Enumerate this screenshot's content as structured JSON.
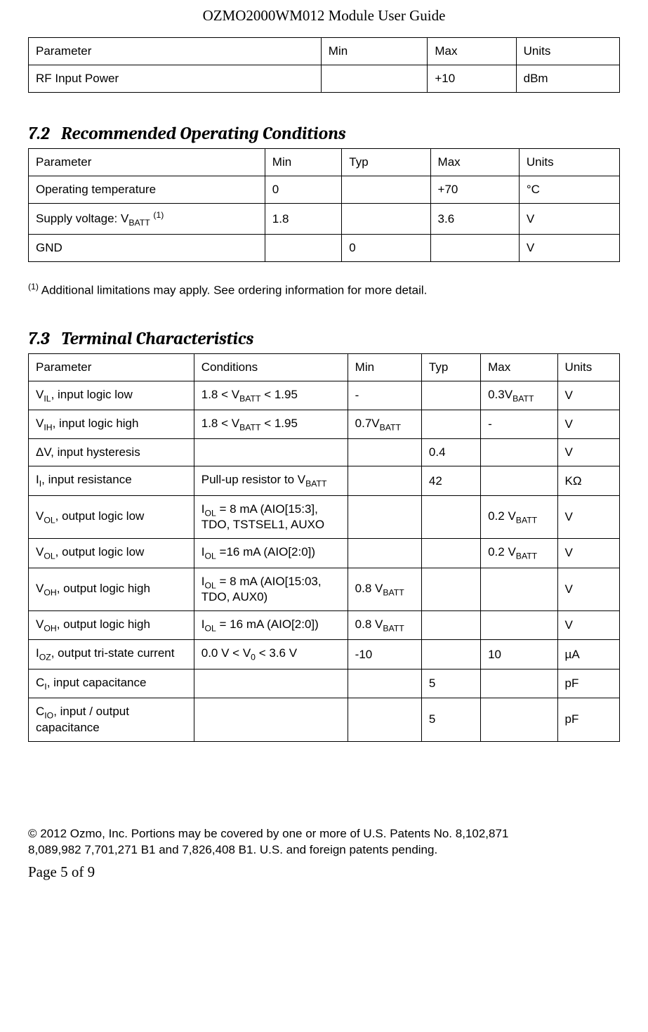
{
  "doc_title": "OZMO2000WM012 Module User Guide",
  "table1": {
    "headers": {
      "param": "Parameter",
      "min": "Min",
      "max": "Max",
      "units": "Units"
    },
    "rows": [
      {
        "param": "RF Input Power",
        "min": "",
        "max": "+10",
        "units": "dBm"
      }
    ],
    "col_widths": [
      "49.5%",
      "18%",
      "15%",
      "17.5%"
    ]
  },
  "section72": {
    "num": "7.2",
    "title": "Recommended Operating Conditions"
  },
  "table2": {
    "headers": {
      "param": "Parameter",
      "min": "Min",
      "typ": "Typ",
      "max": "Max",
      "units": "Units"
    },
    "rows": [
      {
        "param_html": "Operating temperature",
        "min": "0",
        "typ": "",
        "max": "+70",
        "units": "°C"
      },
      {
        "param_html": "Supply voltage: V<sub>BATT</sub> <sup>(1)</sup>",
        "min": "1.8",
        "typ": "",
        "max": "3.6",
        "units": "V"
      },
      {
        "param_html": "GND",
        "min": "",
        "typ": "0",
        "max": "",
        "units": "V"
      }
    ],
    "col_widths": [
      "40%",
      "13%",
      "15%",
      "15%",
      "17%"
    ]
  },
  "footnote1_html": "<sup>(1)</sup> Additional limitations may apply. See ordering information for more detail.",
  "section73": {
    "num": "7.3",
    "title": "Terminal Characteristics"
  },
  "table3": {
    "headers": {
      "param": "Parameter",
      "cond": "Conditions",
      "min": "Min",
      "typ": "Typ",
      "max": "Max",
      "units": "Units"
    },
    "rows": [
      {
        "param_html": "V<sub>IL</sub>, input logic low",
        "cond_html": "1.8 &lt; V<sub>BATT</sub> &lt; 1.95",
        "min_html": "-",
        "typ_html": "",
        "max_html": "0.3V<sub>BATT</sub>",
        "units": "V"
      },
      {
        "param_html": "V<sub>IH</sub>, input logic high",
        "cond_html": "1.8 &lt; V<sub>BATT</sub> &lt; 1.95",
        "min_html": "0.7V<sub>BATT</sub>",
        "typ_html": "",
        "max_html": "-",
        "units": "V"
      },
      {
        "param_html": "ΔV, input hysteresis",
        "cond_html": "",
        "min_html": "",
        "typ_html": "0.4",
        "max_html": "",
        "units": "V"
      },
      {
        "param_html": "I<sub>I</sub>, input resistance",
        "cond_html": "Pull-up resistor to V<sub>BATT</sub>",
        "min_html": "",
        "typ_html": "42",
        "max_html": "",
        "units": "KΩ"
      },
      {
        "param_html": "V<sub>OL</sub>, output logic low",
        "cond_html": "I<sub>OL</sub> = 8 mA (AIO[15:3], TDO, TSTSEL1, AUXO",
        "min_html": "",
        "typ_html": "",
        "max_html": "0.2 V<sub>BATT</sub>",
        "units": "V"
      },
      {
        "param_html": "V<sub>OL</sub>, output logic low",
        "cond_html": "I<sub>OL</sub> =16 mA (AIO[2:0])",
        "min_html": "",
        "typ_html": "",
        "max_html": "0.2 V<sub>BATT</sub>",
        "units": "V"
      },
      {
        "param_html": "V<sub>OH</sub>, output logic high",
        "cond_html": "I<sub>OL</sub> = 8 mA (AIO[15:03, TDO, AUX0)",
        "min_html": "0.8 V<sub>BATT</sub>",
        "typ_html": "",
        "max_html": "",
        "units": "V"
      },
      {
        "param_html": "V<sub>OH</sub>, output logic high",
        "cond_html": "I<sub>OL</sub> = 16 mA (AIO[2:0])",
        "min_html": "0.8 V<sub>BATT</sub>",
        "typ_html": "",
        "max_html": "",
        "units": "V"
      },
      {
        "param_html": "I<sub>OZ</sub>, output tri-state current",
        "cond_html": "0.0 V &lt; V<sub>0</sub> &lt; 3.6 V",
        "min_html": "-10",
        "typ_html": "",
        "max_html": "10",
        "units": "µA"
      },
      {
        "param_html": "C<sub>I</sub>, input capacitance",
        "cond_html": "",
        "min_html": "",
        "typ_html": "5",
        "max_html": "",
        "units": "pF"
      },
      {
        "param_html": "C<sub>IO</sub>, input / output capacitance",
        "cond_html": "",
        "min_html": "",
        "typ_html": "5",
        "max_html": "",
        "units": "pF"
      }
    ],
    "col_widths": [
      "28%",
      "26%",
      "12.5%",
      "10%",
      "13%",
      "10.5%"
    ]
  },
  "footer_line1": "© 2012 Ozmo, Inc. Portions may be covered by one or more of U.S. Patents No. 8,102,871",
  "footer_line2": "8,089,982 7,701,271 B1 and 7,826,408 B1.  U.S. and foreign patents pending.",
  "page_num": "Page 5 of 9"
}
